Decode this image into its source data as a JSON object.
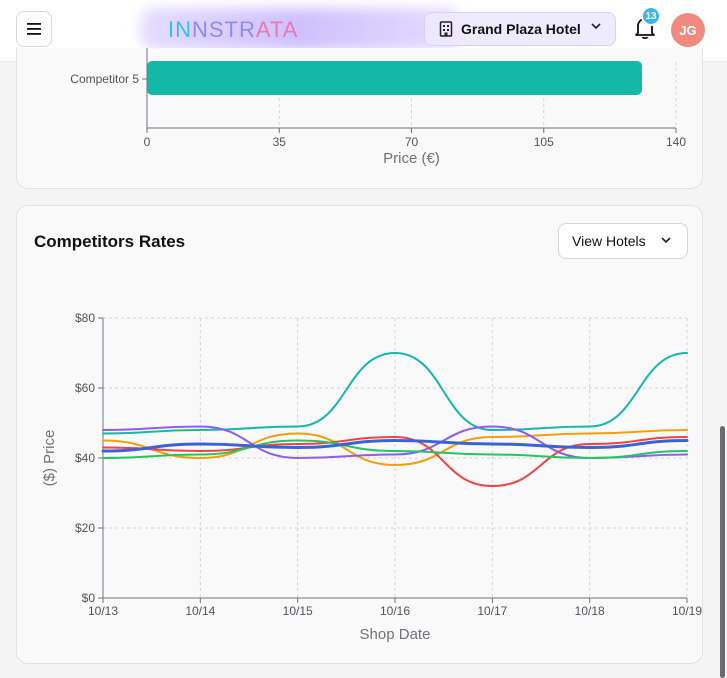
{
  "header": {
    "brand": {
      "part1": "IN",
      "part2": "NSTR",
      "part3": "ATA"
    },
    "hotel_selector": {
      "label": "Grand Plaza Hotel",
      "icon": "building-icon"
    },
    "notifications": {
      "count": "13",
      "icon": "bell-icon"
    },
    "avatar_initials": "JG",
    "menu_icon": "hamburger-icon"
  },
  "bar_chart_card": {
    "bar_color": "#14b8a6"
  },
  "rates_card": {
    "title": "Competitors Rates",
    "view_button_label": "View Hotels"
  },
  "chart_data": [
    {
      "type": "bar",
      "orientation": "horizontal",
      "categories": [
        "Competitor 5"
      ],
      "values": [
        131
      ],
      "xlabel": "Price (€)",
      "ylabel": "",
      "xlim": [
        0,
        140
      ],
      "xticks": [
        0,
        35,
        70,
        105,
        140
      ],
      "grid": true,
      "partially_visible": true
    },
    {
      "type": "line",
      "xlabel": "Shop Date",
      "ylabel": "($) Price",
      "x": [
        "10/13",
        "10/14",
        "10/15",
        "10/16",
        "10/17",
        "10/18",
        "10/19"
      ],
      "ylim": [
        0,
        80
      ],
      "yticks": [
        0,
        20,
        40,
        60,
        80
      ],
      "ytick_labels": [
        "$0",
        "$20",
        "$40",
        "$60",
        "$80"
      ],
      "grid": true,
      "legend": "none",
      "series": [
        {
          "color": "#14b8a6",
          "width": 2,
          "values": [
            47,
            48,
            49,
            70,
            48,
            49,
            70
          ]
        },
        {
          "color": "#f59e0b",
          "width": 2,
          "values": [
            45,
            40,
            47,
            38,
            46,
            47,
            48
          ]
        },
        {
          "color": "#8b5cf6",
          "width": 2,
          "values": [
            48,
            49,
            40,
            41,
            49,
            40,
            41
          ]
        },
        {
          "color": "#ef4444",
          "width": 2,
          "values": [
            43,
            42,
            44,
            46,
            32,
            44,
            46
          ]
        },
        {
          "color": "#22c55e",
          "width": 2,
          "values": [
            40,
            41,
            45,
            42,
            41,
            40,
            42
          ]
        },
        {
          "color": "#3b63d6",
          "width": 3,
          "values": [
            42,
            44,
            43,
            45,
            44,
            43,
            45
          ]
        }
      ]
    }
  ]
}
